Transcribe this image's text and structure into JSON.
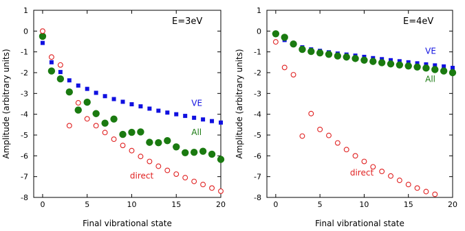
{
  "chart_data": [
    {
      "type": "scatter",
      "panel_label": "E=3eV",
      "xlabel": "Final vibrational state",
      "ylabel": "Amplitude (arbitrary units)",
      "xlim": [
        -1,
        20
      ],
      "ylim": [
        -8,
        1
      ],
      "xticks": [
        0,
        5,
        10,
        15,
        20
      ],
      "yticks": [
        1,
        0,
        -1,
        -2,
        -3,
        -4,
        -5,
        -6,
        -7,
        -8
      ],
      "series": [
        {
          "name": "VE",
          "marker": "square",
          "color": "#1010e0",
          "x": [
            0,
            1,
            2,
            3,
            4,
            5,
            6,
            7,
            8,
            9,
            10,
            11,
            12,
            13,
            14,
            15,
            16,
            17,
            18,
            19,
            20
          ],
          "y": [
            -0.57,
            -1.5,
            -1.97,
            -2.37,
            -2.62,
            -2.78,
            -2.97,
            -3.13,
            -3.27,
            -3.4,
            -3.52,
            -3.62,
            -3.73,
            -3.83,
            -3.92,
            -4.0,
            -4.08,
            -4.17,
            -4.25,
            -4.33,
            -4.4
          ]
        },
        {
          "name": "All",
          "marker": "filled-circle",
          "color": "#1a7a10",
          "x": [
            0,
            1,
            2,
            3,
            4,
            5,
            6,
            7,
            8,
            9,
            10,
            11,
            12,
            13,
            14,
            15,
            16,
            17,
            18,
            19,
            20
          ],
          "y": [
            -0.25,
            -1.92,
            -2.3,
            -2.93,
            -3.8,
            -3.42,
            -3.97,
            -4.43,
            -4.23,
            -4.97,
            -4.87,
            -4.85,
            -5.35,
            -5.37,
            -5.27,
            -5.57,
            -5.85,
            -5.83,
            -5.78,
            -5.92,
            -6.17
          ]
        },
        {
          "name": "direct",
          "marker": "open-circle",
          "color": "#e02020",
          "x": [
            0,
            1,
            2,
            3,
            4,
            5,
            6,
            7,
            8,
            9,
            10,
            11,
            12,
            13,
            14,
            15,
            16,
            17,
            18,
            19,
            20
          ],
          "y": [
            0.0,
            -1.25,
            -1.63,
            -4.55,
            -3.45,
            -4.22,
            -4.55,
            -4.88,
            -5.2,
            -5.5,
            -5.75,
            -6.03,
            -6.27,
            -6.5,
            -6.7,
            -6.88,
            -7.05,
            -7.23,
            -7.38,
            -7.55,
            -7.7
          ]
        }
      ],
      "annotations": [
        {
          "text": "VE",
          "x": 16.7,
          "y": -3.6,
          "color": "#1010e0"
        },
        {
          "text": "All",
          "x": 16.7,
          "y": -5.0,
          "color": "#1a7a10"
        },
        {
          "text": "direct",
          "x": 9.8,
          "y": -7.1,
          "color": "#e02020"
        }
      ]
    },
    {
      "type": "scatter",
      "panel_label": "E=4eV",
      "xlabel": "Final vibrational state",
      "ylabel": "Amplitude (arbitrary units)",
      "xlim": [
        -1,
        20
      ],
      "ylim": [
        -8,
        1
      ],
      "xticks": [
        0,
        5,
        10,
        15,
        20
      ],
      "yticks": [
        1,
        0,
        -1,
        -2,
        -3,
        -4,
        -5,
        -6,
        -7,
        -8
      ],
      "series": [
        {
          "name": "VE",
          "marker": "square",
          "color": "#1010e0",
          "x": [
            0,
            1,
            2,
            3,
            4,
            5,
            6,
            7,
            8,
            9,
            10,
            11,
            12,
            13,
            14,
            15,
            16,
            17,
            18,
            19,
            20
          ],
          "y": [
            -0.1,
            -0.43,
            -0.6,
            -0.78,
            -0.88,
            -0.95,
            -1.02,
            -1.08,
            -1.13,
            -1.18,
            -1.24,
            -1.3,
            -1.35,
            -1.4,
            -1.45,
            -1.5,
            -1.55,
            -1.6,
            -1.65,
            -1.7,
            -1.77
          ]
        },
        {
          "name": "All",
          "marker": "filled-circle",
          "color": "#1a7a10",
          "x": [
            0,
            1,
            2,
            3,
            4,
            5,
            6,
            7,
            8,
            9,
            10,
            11,
            12,
            13,
            14,
            15,
            16,
            17,
            18,
            19,
            20
          ],
          "y": [
            -0.13,
            -0.3,
            -0.62,
            -0.88,
            -0.98,
            -1.05,
            -1.12,
            -1.2,
            -1.25,
            -1.32,
            -1.4,
            -1.46,
            -1.52,
            -1.58,
            -1.63,
            -1.68,
            -1.73,
            -1.78,
            -1.85,
            -1.92,
            -2.0
          ]
        },
        {
          "name": "direct",
          "marker": "open-circle",
          "color": "#e02020",
          "x": [
            0,
            1,
            2,
            3,
            4,
            5,
            6,
            7,
            8,
            9,
            10,
            11,
            12,
            13,
            14,
            15,
            16,
            17,
            18,
            19,
            20
          ],
          "y": [
            -0.52,
            -1.75,
            -2.1,
            -5.05,
            -3.97,
            -4.73,
            -5.02,
            -5.38,
            -5.7,
            -6.0,
            -6.27,
            -6.53,
            -6.75,
            -6.97,
            -7.18,
            -7.38,
            -7.55,
            -7.72,
            -7.85,
            null,
            null
          ]
        }
      ],
      "annotations": [
        {
          "text": "VE",
          "x": 16.9,
          "y": -1.1,
          "color": "#1010e0"
        },
        {
          "text": "All",
          "x": 16.9,
          "y": -2.45,
          "color": "#1a7a10"
        },
        {
          "text": "direct",
          "x": 8.4,
          "y": -6.95,
          "color": "#e02020"
        }
      ]
    }
  ]
}
